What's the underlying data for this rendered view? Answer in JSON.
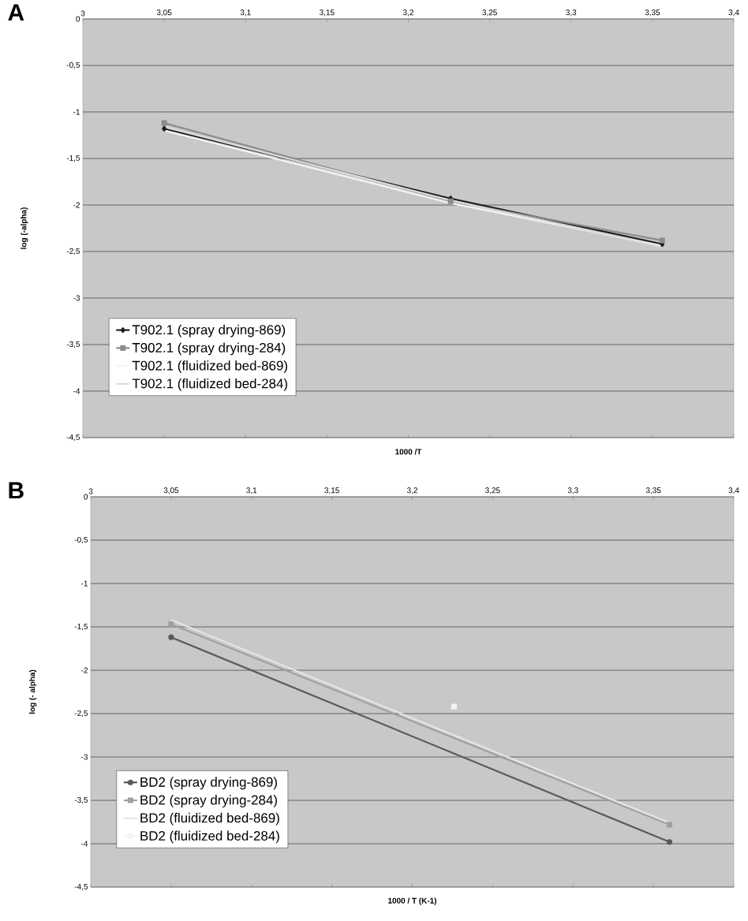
{
  "chart_data": [
    {
      "type": "line",
      "title": "A",
      "xlabel": "1000 /T",
      "ylabel": "log (-alpha)",
      "xlim": [
        3,
        3.4
      ],
      "ylim": [
        -4.5,
        0
      ],
      "xticks": [
        3,
        {
          "value": 3.05,
          "label": "3,05"
        },
        {
          "value": 3.1,
          "label": "3,1"
        },
        {
          "value": 3.15,
          "label": "3,15"
        },
        {
          "value": 3.2,
          "label": "3,2"
        },
        {
          "value": 3.25,
          "label": "3,25"
        },
        {
          "value": 3.3,
          "label": "3,3"
        },
        {
          "value": 3.35,
          "label": "3,35"
        },
        {
          "value": 3.4,
          "label": "3,4"
        }
      ],
      "yticks": [
        0,
        {
          "value": -0.5,
          "label": "-0,5"
        },
        -1,
        {
          "value": -1.5,
          "label": "-1,5"
        },
        -2,
        {
          "value": -2.5,
          "label": "-2,5"
        },
        -3,
        {
          "value": -3.5,
          "label": "-3,5"
        },
        -4,
        {
          "value": -4.5,
          "label": "-4,5"
        }
      ],
      "grid": "y",
      "legend": "bottom left",
      "series": [
        {
          "name": "T902.1 (spray drying-869)",
          "color": "#1e1e1e",
          "marker": "diamond",
          "x": [
            3.05,
            3.226,
            3.356
          ],
          "values": [
            -1.18,
            -1.93,
            -2.42
          ]
        },
        {
          "name": "T902.1 (spray drying-284)",
          "color": "#8c8c8c",
          "marker": "square",
          "x": [
            3.05,
            3.226,
            3.356
          ],
          "values": [
            -1.12,
            -1.96,
            -2.38
          ]
        },
        {
          "name": "T902.1 (fluidized bed-869)",
          "color": "#f4f4f4",
          "marker": "none",
          "x": [
            3.05,
            3.226,
            3.356
          ],
          "values": [
            -1.2,
            -1.98,
            -2.44
          ]
        },
        {
          "name": "T902.1 (fluidized bed-284)",
          "color": "#dcdcdc",
          "marker": "none",
          "x": [
            3.05,
            3.226,
            3.356
          ],
          "values": [
            -1.16,
            -1.95,
            -2.45
          ]
        }
      ]
    },
    {
      "type": "line",
      "title": "B",
      "xlabel": "1000 / T (K-1)",
      "ylabel": "log (- alpha)",
      "xlim": [
        3,
        3.4
      ],
      "ylim": [
        -4.5,
        0
      ],
      "xticks": [
        3,
        {
          "value": 3.05,
          "label": "3,05"
        },
        {
          "value": 3.1,
          "label": "3,1"
        },
        {
          "value": 3.15,
          "label": "3,15"
        },
        {
          "value": 3.2,
          "label": "3,2"
        },
        {
          "value": 3.25,
          "label": "3,25"
        },
        {
          "value": 3.3,
          "label": "3,3"
        },
        {
          "value": 3.35,
          "label": "3,35"
        },
        {
          "value": 3.4,
          "label": "3,4"
        }
      ],
      "yticks": [
        0,
        {
          "value": -0.5,
          "label": "-0,5"
        },
        -1,
        {
          "value": -1.5,
          "label": "-1,5"
        },
        -2,
        {
          "value": -2.5,
          "label": "-2,5"
        },
        -3,
        {
          "value": -3.5,
          "label": "-3,5"
        },
        -4,
        {
          "value": -4.5,
          "label": "-4,5"
        }
      ],
      "grid": "y",
      "legend": "bottom left",
      "series": [
        {
          "name": "BD2 (spray drying-869)",
          "color": "#5a5a5a",
          "marker": "circle",
          "x": [
            3.05,
            3.36
          ],
          "values": [
            -1.62,
            -3.98
          ]
        },
        {
          "name": "BD2 (spray drying-284)",
          "color": "#a0a0a0",
          "marker": "square",
          "x": [
            3.05,
            3.36
          ],
          "values": [
            -1.47,
            -3.78
          ]
        },
        {
          "name": "BD2 (fluidized bed-869)",
          "color": "#e6e6e6",
          "marker": "none",
          "x": [
            3.05,
            3.36
          ],
          "values": [
            -1.42,
            -3.76
          ]
        },
        {
          "name": "BD2 (fluidized bed-284)",
          "color": "#f4f4f4",
          "marker": "square",
          "x": [
            3.226
          ],
          "values": [
            -2.42
          ]
        }
      ]
    }
  ]
}
